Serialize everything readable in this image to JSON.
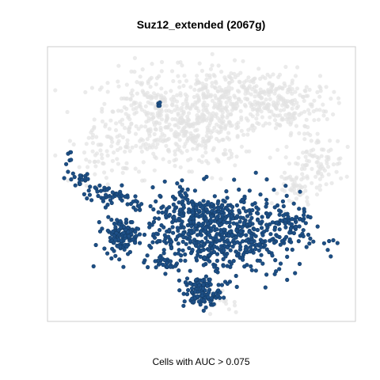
{
  "chart_data": {
    "type": "scatter",
    "title": "Suz12_extended (2067g)",
    "xlabel": "Cells with AUC > 0.075",
    "ylabel": "",
    "xlim": [
      0,
      100
    ],
    "ylim": [
      0,
      100
    ],
    "grid": false,
    "legend": "none",
    "colors": {
      "active": "#1d4f86",
      "active_edge": "#143c66",
      "inactive": "#e2e2e2"
    },
    "clusters": [
      {
        "role": "inactive",
        "cx": 34,
        "cy": 75,
        "sx": 10,
        "sy": 9,
        "n": 330
      },
      {
        "role": "inactive",
        "cx": 58,
        "cy": 82,
        "sx": 10,
        "sy": 6,
        "n": 260
      },
      {
        "role": "inactive",
        "cx": 77,
        "cy": 80,
        "sx": 8,
        "sy": 6,
        "n": 200
      },
      {
        "role": "inactive",
        "cx": 50,
        "cy": 68,
        "sx": 7,
        "sy": 6,
        "n": 150
      },
      {
        "role": "inactive",
        "cx": 88,
        "cy": 58,
        "sx": 5,
        "sy": 5,
        "n": 90
      },
      {
        "role": "inactive",
        "cx": 82,
        "cy": 48,
        "sx": 3,
        "sy": 3,
        "n": 40
      },
      {
        "role": "inactive",
        "cx": 16,
        "cy": 60,
        "sx": 5,
        "sy": 5,
        "n": 50
      },
      {
        "role": "inactive",
        "cx": 58,
        "cy": 5,
        "sx": 4,
        "sy": 2,
        "n": 15
      },
      {
        "role": "active",
        "cx": 57,
        "cy": 31,
        "sx": 13,
        "sy": 8,
        "n": 600
      },
      {
        "role": "active",
        "cx": 47,
        "cy": 39,
        "sx": 7,
        "sy": 5,
        "n": 140
      },
      {
        "role": "active",
        "cx": 23,
        "cy": 31,
        "sx": 3,
        "sy": 3,
        "n": 120
      },
      {
        "role": "active",
        "cx": 50,
        "cy": 9,
        "sx": 3,
        "sy": 3,
        "n": 110
      },
      {
        "role": "active",
        "cx": 18,
        "cy": 46,
        "sx": 3.5,
        "sy": 1.5,
        "n": 45
      },
      {
        "role": "active",
        "cx": 9,
        "cy": 52,
        "sx": 2.5,
        "sy": 2,
        "n": 20
      },
      {
        "role": "active",
        "cx": 79,
        "cy": 36,
        "sx": 3,
        "sy": 2,
        "n": 35
      },
      {
        "role": "active",
        "cx": 37,
        "cy": 20,
        "sx": 2.5,
        "sy": 1.5,
        "n": 20
      },
      {
        "role": "active",
        "cx": 28,
        "cy": 42,
        "sx": 2,
        "sy": 1.5,
        "n": 12
      },
      {
        "role": "active",
        "cx": 5,
        "cy": 61,
        "sx": 1,
        "sy": 1.5,
        "n": 6
      },
      {
        "role": "active",
        "cx": 36,
        "cy": 80,
        "sx": 0.3,
        "sy": 0.8,
        "n": 4
      }
    ]
  }
}
